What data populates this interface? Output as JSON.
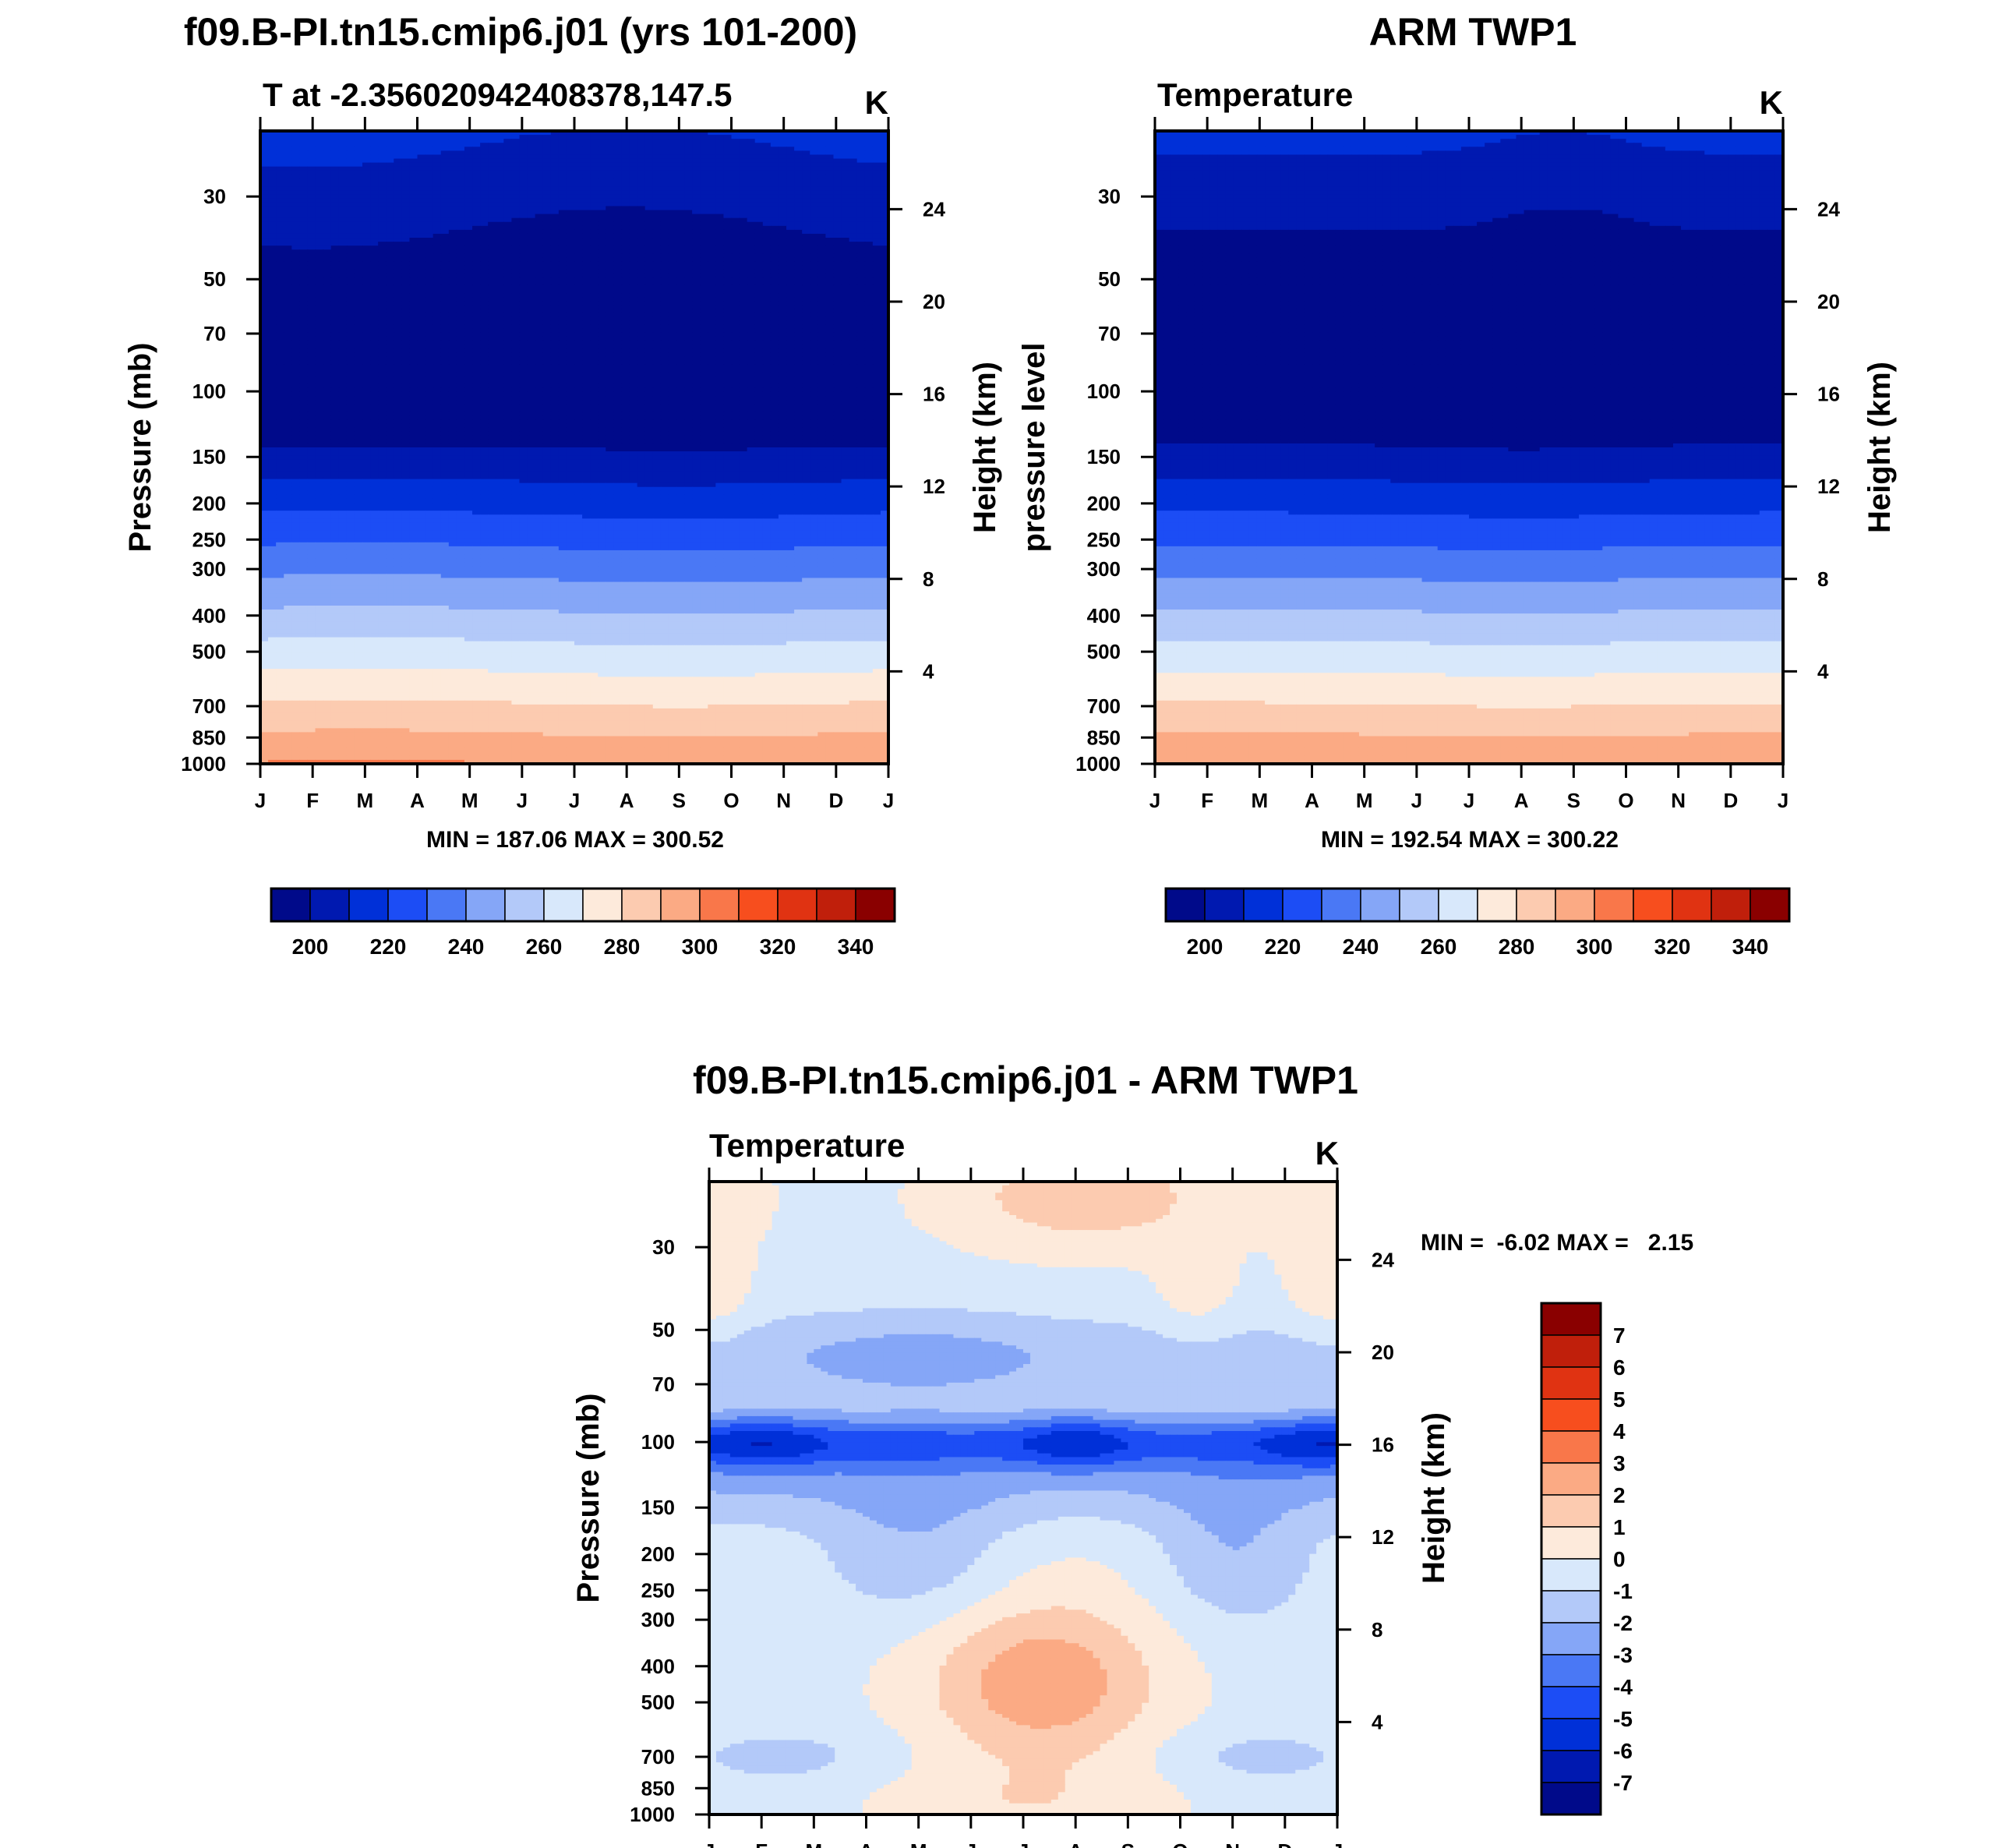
{
  "figure": {
    "panels": [
      {
        "title": "f09.B-PI.tn15.cmip6.j01 (yrs 101-200)",
        "subtitle_left": "T at -2.356020942408378,147.5",
        "subtitle_right": "K",
        "ylabel_left": "Pressure (mb)",
        "ylabel_right": "Height (km)",
        "stats": "MIN = 187.06 MAX = 300.52"
      },
      {
        "title": "ARM TWP1",
        "subtitle_left": "Temperature",
        "subtitle_right": "K",
        "ylabel_left": "pressure level",
        "ylabel_right": "Height (km)",
        "stats": "MIN = 192.54 MAX = 300.22"
      },
      {
        "title": "f09.B-PI.tn15.cmip6.j01 - ARM TWP1",
        "subtitle_left": "Temperature",
        "subtitle_right": "K",
        "ylabel_left": "Pressure (mb)",
        "ylabel_right": "Height (km)",
        "stats": "MIN =  -6.02 MAX =   2.15"
      }
    ]
  },
  "chart_data": [
    {
      "type": "heatmap",
      "title": "f09.B-PI.tn15.cmip6.j01 (yrs 101-200)",
      "subtitle": "T at -2.356020942408378,147.5",
      "units": "K",
      "xlabel": "",
      "ylabel": "Pressure (mb)",
      "ylabel_right": "Height (km)",
      "x_ticks": [
        "J",
        "F",
        "M",
        "A",
        "M",
        "J",
        "J",
        "A",
        "S",
        "O",
        "N",
        "D",
        "J"
      ],
      "y_ticks": [
        30,
        50,
        70,
        100,
        150,
        200,
        250,
        300,
        400,
        500,
        700,
        850,
        1000
      ],
      "y_right_ticks": [
        24,
        20,
        16,
        12,
        8,
        4
      ],
      "ylim": [
        1000,
        20
      ],
      "contour_levels": [
        200,
        210,
        220,
        230,
        240,
        250,
        260,
        270,
        280,
        290,
        300,
        310,
        320,
        330,
        340
      ],
      "colorbar_labels": [
        200,
        220,
        240,
        260,
        280,
        300,
        320,
        340
      ],
      "min": 187.06,
      "max": 300.52
    },
    {
      "type": "heatmap",
      "title": "ARM TWP1",
      "subtitle": "Temperature",
      "units": "K",
      "xlabel": "",
      "ylabel": "pressure level",
      "ylabel_right": "Height (km)",
      "x_ticks": [
        "J",
        "F",
        "M",
        "A",
        "M",
        "J",
        "J",
        "A",
        "S",
        "O",
        "N",
        "D",
        "J"
      ],
      "y_ticks": [
        30,
        50,
        70,
        100,
        150,
        200,
        250,
        300,
        400,
        500,
        700,
        850,
        1000
      ],
      "y_right_ticks": [
        24,
        20,
        16,
        12,
        8,
        4
      ],
      "ylim": [
        1000,
        20
      ],
      "contour_levels": [
        200,
        210,
        220,
        230,
        240,
        250,
        260,
        270,
        280,
        290,
        300,
        310,
        320,
        330,
        340
      ],
      "colorbar_labels": [
        200,
        220,
        240,
        260,
        280,
        300,
        320,
        340
      ],
      "min": 192.54,
      "max": 300.22
    },
    {
      "type": "heatmap",
      "title": "f09.B-PI.tn15.cmip6.j01 - ARM TWP1",
      "subtitle": "Temperature",
      "units": "K",
      "xlabel": "",
      "ylabel": "Pressure (mb)",
      "ylabel_right": "Height (km)",
      "x_ticks": [
        "J",
        "F",
        "M",
        "A",
        "M",
        "J",
        "J",
        "A",
        "S",
        "O",
        "N",
        "D",
        "J"
      ],
      "y_ticks": [
        30,
        50,
        70,
        100,
        150,
        200,
        250,
        300,
        400,
        500,
        700,
        850,
        1000
      ],
      "y_right_ticks": [
        24,
        20,
        16,
        12,
        8,
        4
      ],
      "ylim": [
        1000,
        20
      ],
      "contour_levels": [
        -7,
        -6,
        -5,
        -4,
        -3,
        -2,
        -1,
        0,
        1,
        2,
        3,
        4,
        5,
        6,
        7
      ],
      "colorbar_labels": [
        7,
        6,
        5,
        4,
        3,
        2,
        1,
        0,
        -1,
        -2,
        -3,
        -4,
        -5,
        -6,
        -7
      ],
      "min": -6.02,
      "max": 2.15
    }
  ],
  "colors": {
    "absolute_scale": [
      "#000a8a",
      "#0019b0",
      "#0030d8",
      "#1c4df5",
      "#4a78f5",
      "#85a6f7",
      "#b3c9f9",
      "#d8e8fb",
      "#fdeadb",
      "#fccbb0",
      "#fbaa84",
      "#f9774a",
      "#f74e1e",
      "#e03312",
      "#c01f0b",
      "#8a0000"
    ],
    "difference_scale": [
      "#000a8a",
      "#0019b0",
      "#0030d8",
      "#1c4df5",
      "#4a78f5",
      "#85a6f7",
      "#b3c9f9",
      "#d8e8fb",
      "#fdeadb",
      "#fccbb0",
      "#fbaa84",
      "#f9774a",
      "#f74e1e",
      "#e03312",
      "#c01f0b",
      "#8a0000"
    ]
  }
}
